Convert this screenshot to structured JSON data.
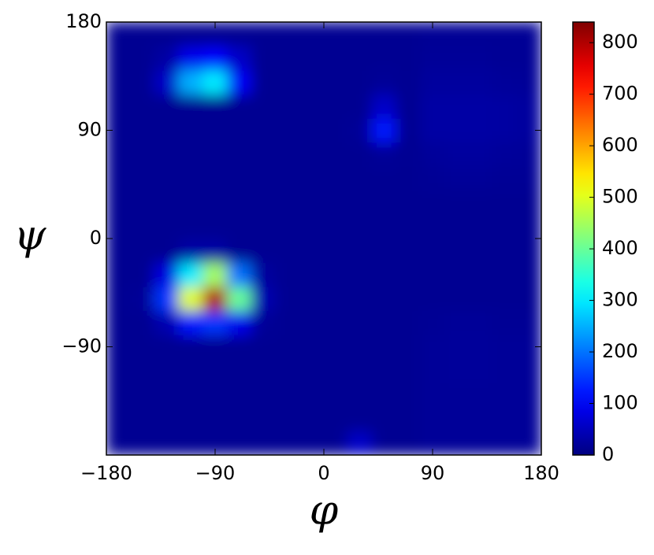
{
  "chart_data": {
    "type": "heatmap",
    "xlabel": "φ",
    "ylabel": "ψ",
    "x": [
      -170,
      -150,
      -130,
      -110,
      -90,
      -70,
      -50,
      -30,
      -10,
      10,
      30,
      50,
      70,
      90,
      110,
      130,
      150,
      170
    ],
    "y": [
      -170,
      -150,
      -130,
      -110,
      -90,
      -70,
      -50,
      -30,
      -10,
      10,
      30,
      50,
      70,
      90,
      110,
      130,
      150,
      170
    ],
    "z": [
      [
        15,
        15,
        15,
        15,
        15,
        15,
        15,
        15,
        15,
        15,
        60,
        15,
        15,
        20,
        20,
        20,
        20,
        20
      ],
      [
        15,
        15,
        15,
        15,
        15,
        15,
        15,
        15,
        15,
        15,
        15,
        15,
        15,
        20,
        20,
        20,
        20,
        20
      ],
      [
        15,
        15,
        15,
        15,
        15,
        15,
        15,
        15,
        15,
        15,
        15,
        15,
        15,
        20,
        20,
        20,
        20,
        20
      ],
      [
        15,
        15,
        15,
        15,
        15,
        15,
        15,
        15,
        15,
        15,
        15,
        15,
        15,
        20,
        22,
        22,
        20,
        20
      ],
      [
        15,
        15,
        15,
        15,
        15,
        15,
        15,
        15,
        15,
        15,
        15,
        15,
        15,
        20,
        22,
        22,
        20,
        20
      ],
      [
        15,
        15,
        40,
        120,
        150,
        90,
        20,
        15,
        15,
        15,
        15,
        15,
        15,
        18,
        20,
        20,
        18,
        18
      ],
      [
        15,
        20,
        150,
        500,
        800,
        400,
        40,
        15,
        15,
        15,
        15,
        15,
        15,
        15,
        15,
        15,
        15,
        15
      ],
      [
        15,
        15,
        80,
        300,
        450,
        200,
        25,
        15,
        15,
        15,
        15,
        15,
        15,
        15,
        15,
        15,
        15,
        15
      ],
      [
        15,
        15,
        15,
        30,
        30,
        15,
        15,
        15,
        15,
        15,
        15,
        15,
        15,
        15,
        15,
        15,
        15,
        15
      ],
      [
        15,
        15,
        15,
        15,
        15,
        15,
        15,
        15,
        15,
        15,
        15,
        15,
        15,
        15,
        15,
        15,
        15,
        15
      ],
      [
        15,
        15,
        15,
        15,
        15,
        15,
        15,
        15,
        15,
        15,
        15,
        15,
        15,
        15,
        15,
        15,
        15,
        15
      ],
      [
        15,
        15,
        15,
        15,
        15,
        15,
        15,
        15,
        15,
        15,
        15,
        15,
        15,
        18,
        20,
        20,
        18,
        18
      ],
      [
        15,
        15,
        15,
        15,
        15,
        15,
        15,
        15,
        15,
        15,
        15,
        20,
        15,
        22,
        25,
        25,
        22,
        20
      ],
      [
        15,
        15,
        15,
        15,
        15,
        15,
        15,
        15,
        15,
        15,
        20,
        120,
        15,
        30,
        30,
        30,
        28,
        25
      ],
      [
        15,
        15,
        15,
        15,
        15,
        15,
        15,
        15,
        15,
        15,
        15,
        60,
        15,
        30,
        30,
        30,
        28,
        25
      ],
      [
        15,
        15,
        60,
        250,
        300,
        100,
        15,
        15,
        15,
        15,
        15,
        20,
        15,
        25,
        25,
        25,
        22,
        20
      ],
      [
        15,
        15,
        30,
        90,
        110,
        60,
        15,
        15,
        15,
        15,
        15,
        15,
        15,
        20,
        20,
        20,
        18,
        18
      ],
      [
        15,
        15,
        15,
        15,
        15,
        15,
        15,
        15,
        15,
        15,
        15,
        15,
        15,
        18,
        18,
        18,
        18,
        18
      ]
    ],
    "xlim": [
      -180,
      180
    ],
    "ylim": [
      -180,
      180
    ],
    "xticks": [
      {
        "value": -180,
        "label": "−180"
      },
      {
        "value": -90,
        "label": "−90"
      },
      0,
      90,
      180
    ],
    "yticks": [
      {
        "value": -90,
        "label": "−90"
      },
      0,
      90,
      180
    ],
    "colormap": "jet",
    "zlim": [
      0,
      840
    ],
    "colorbar_ticks": [
      0,
      100,
      200,
      300,
      400,
      500,
      600,
      700,
      800
    ]
  }
}
